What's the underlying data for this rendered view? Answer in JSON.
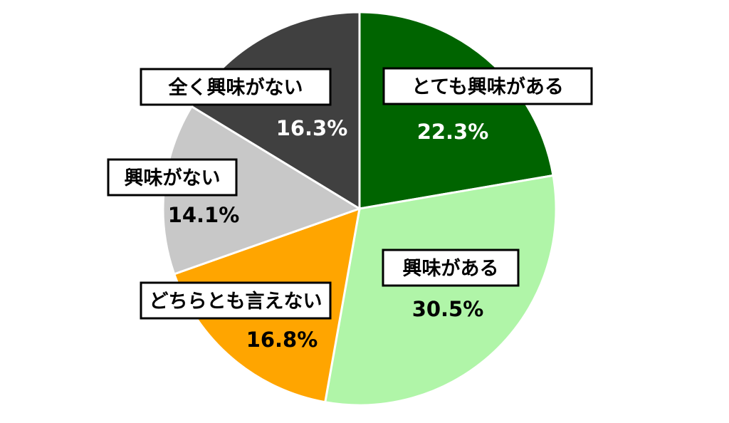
{
  "chart_data": {
    "type": "pie",
    "title": "",
    "slices": [
      {
        "label": "とても興味がある",
        "value": 22.3,
        "value_label": "22.3%",
        "color": "#006400",
        "value_color": "#ffffff"
      },
      {
        "label": "興味がある",
        "value": 30.5,
        "value_label": "30.5%",
        "color": "#b0f5a8",
        "value_color": "#000000"
      },
      {
        "label": "どちらとも言えない",
        "value": 16.8,
        "value_label": "16.8%",
        "color": "#ffa500",
        "value_color": "#000000"
      },
      {
        "label": "興味がない",
        "value": 14.1,
        "value_label": "14.1%",
        "color": "#c8c8c8",
        "value_color": "#000000"
      },
      {
        "label": "全く興味がない",
        "value": 16.3,
        "value_label": "16.3%",
        "color": "#404040",
        "value_color": "#ffffff"
      }
    ],
    "start_angle": "12 o'clock",
    "direction": "clockwise",
    "legend": "none"
  }
}
